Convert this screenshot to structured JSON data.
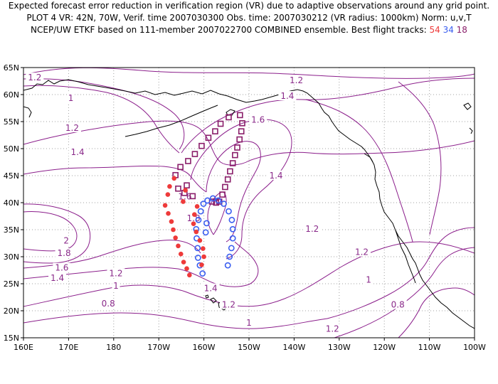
{
  "header": {
    "line1": "Expected forecast error reduction in verification region (VR) due to adaptive observations around any grid point.",
    "line2": "PLOT 4 VR: 42N, 70W, Verif. time 2007030300 Obs. time: 2007030212 (VR radius: 1000km) Norm: u,v,T",
    "line3": "NCEP/UW ETKF based on 111-member 2007022700 COMBINED ensemble.  Best flight tracks:",
    "track_a": "54",
    "track_b": "34",
    "track_c": "18"
  },
  "colors": {
    "contour": "#8b1e8b",
    "coast": "#000000",
    "grid": "#a0a0a0",
    "track_red": "#ee3a3a",
    "track_blue": "#3a5ef0",
    "track_purple": "#8a1e6a"
  },
  "axes": {
    "x_ticks": [
      "160E",
      "170E",
      "180",
      "170W",
      "160W",
      "150W",
      "140W",
      "130W",
      "120W",
      "110W",
      "100W"
    ],
    "y_ticks": [
      "65N",
      "60N",
      "55N",
      "50N",
      "45N",
      "40N",
      "35N",
      "30N",
      "25N",
      "20N",
      "15N"
    ]
  },
  "contour_labels": [
    {
      "text": "1.2",
      "lon": 162.5,
      "lat": 63.0
    },
    {
      "text": "1.2",
      "lon": -139.5,
      "lat": 62.5
    },
    {
      "text": "1",
      "lon": 170.5,
      "lat": 59.2
    },
    {
      "text": "1.4",
      "lon": -141.5,
      "lat": 59.6
    },
    {
      "text": "1.2",
      "lon": 170.8,
      "lat": 53.7
    },
    {
      "text": "1.6",
      "lon": -148.0,
      "lat": 55.2
    },
    {
      "text": "1.4",
      "lon": 172.0,
      "lat": 49.2
    },
    {
      "text": "1.4",
      "lon": -144.0,
      "lat": 44.9
    },
    {
      "text": "1.6",
      "lon": -164.2,
      "lat": 41.0
    },
    {
      "text": "1.8",
      "lon": -162.3,
      "lat": 37.0
    },
    {
      "text": "2",
      "lon": 169.5,
      "lat": 32.8
    },
    {
      "text": "1.2",
      "lon": -136.0,
      "lat": 35.0
    },
    {
      "text": "1.8",
      "lon": 169.0,
      "lat": 30.5
    },
    {
      "text": "1.6",
      "lon": 168.5,
      "lat": 27.8
    },
    {
      "text": "1.2",
      "lon": -125.0,
      "lat": 30.7
    },
    {
      "text": "1.4",
      "lon": 167.5,
      "lat": 25.9
    },
    {
      "text": "1.2",
      "lon": 180.5,
      "lat": 26.8
    },
    {
      "text": "1",
      "lon": 180.5,
      "lat": 24.5
    },
    {
      "text": "1.4",
      "lon": -158.5,
      "lat": 24.0
    },
    {
      "text": "1.2",
      "lon": -154.5,
      "lat": 21.0
    },
    {
      "text": "1",
      "lon": -123.5,
      "lat": 25.6
    },
    {
      "text": "0.8",
      "lon": 178.8,
      "lat": 21.2
    },
    {
      "text": "0.8",
      "lon": -117.0,
      "lat": 21.0
    },
    {
      "text": "1",
      "lon": -150.0,
      "lat": 17.6
    },
    {
      "text": "1.2",
      "lon": -131.5,
      "lat": 16.5
    }
  ],
  "tracks": {
    "red": [
      [
        -166.6,
        44.5
      ],
      [
        -167.6,
        43.0
      ],
      [
        -168.0,
        41.5
      ],
      [
        -168.6,
        39.5
      ],
      [
        -167.9,
        38.0
      ],
      [
        -167.2,
        36.5
      ],
      [
        -166.8,
        35.0
      ],
      [
        -166.3,
        33.5
      ],
      [
        -165.7,
        32.0
      ],
      [
        -165.1,
        30.5
      ],
      [
        -164.5,
        29.0
      ],
      [
        -163.8,
        27.8
      ],
      [
        -163.2,
        26.6
      ],
      [
        -160.5,
        28.5
      ],
      [
        -160.0,
        30.0
      ],
      [
        -160.2,
        31.5
      ],
      [
        -160.9,
        33.0
      ],
      [
        -161.7,
        34.6
      ],
      [
        -162.3,
        36.1
      ],
      [
        -162.1,
        37.8
      ],
      [
        -161.5,
        39.3
      ],
      [
        -164.1,
        42.3
      ],
      [
        -164.6,
        40.2
      ]
    ],
    "blue": [
      [
        -160.3,
        26.9
      ],
      [
        -160.9,
        28.4
      ],
      [
        -161.3,
        29.8
      ],
      [
        -161.4,
        31.6
      ],
      [
        -161.6,
        33.4
      ],
      [
        -161.7,
        35.1
      ],
      [
        -161.2,
        36.8
      ],
      [
        -160.7,
        38.4
      ],
      [
        -160.1,
        39.8
      ],
      [
        -159.2,
        40.4
      ],
      [
        -158.0,
        40.8
      ],
      [
        -156.8,
        40.4
      ],
      [
        -155.6,
        39.8
      ],
      [
        -154.5,
        38.4
      ],
      [
        -153.8,
        36.8
      ],
      [
        -153.6,
        35.1
      ],
      [
        -153.6,
        33.4
      ],
      [
        -153.9,
        31.6
      ],
      [
        -154.3,
        30.0
      ],
      [
        -154.7,
        28.4
      ],
      [
        -159.6,
        34.5
      ],
      [
        -159.4,
        36.2
      ]
    ],
    "purple": [
      [
        -166.3,
        45.1
      ],
      [
        -165.2,
        46.6
      ],
      [
        -163.5,
        47.7
      ],
      [
        -162.0,
        49.0
      ],
      [
        -160.5,
        50.5
      ],
      [
        -159.0,
        52.0
      ],
      [
        -157.5,
        53.2
      ],
      [
        -156.3,
        54.6
      ],
      [
        -154.5,
        55.8
      ],
      [
        -152.0,
        56.2
      ],
      [
        -151.5,
        54.7
      ],
      [
        -151.7,
        53.2
      ],
      [
        -152.1,
        51.7
      ],
      [
        -152.6,
        50.2
      ],
      [
        -153.1,
        48.8
      ],
      [
        -153.6,
        47.3
      ],
      [
        -154.2,
        45.8
      ],
      [
        -154.7,
        44.3
      ],
      [
        -155.3,
        42.9
      ],
      [
        -155.9,
        41.5
      ],
      [
        -156.6,
        40.2
      ],
      [
        -157.3,
        40.0
      ],
      [
        -158.2,
        40.2
      ],
      [
        -162.5,
        41.2
      ],
      [
        -164.3,
        41.8
      ],
      [
        -163.8,
        43.2
      ],
      [
        -165.7,
        42.6
      ]
    ]
  }
}
